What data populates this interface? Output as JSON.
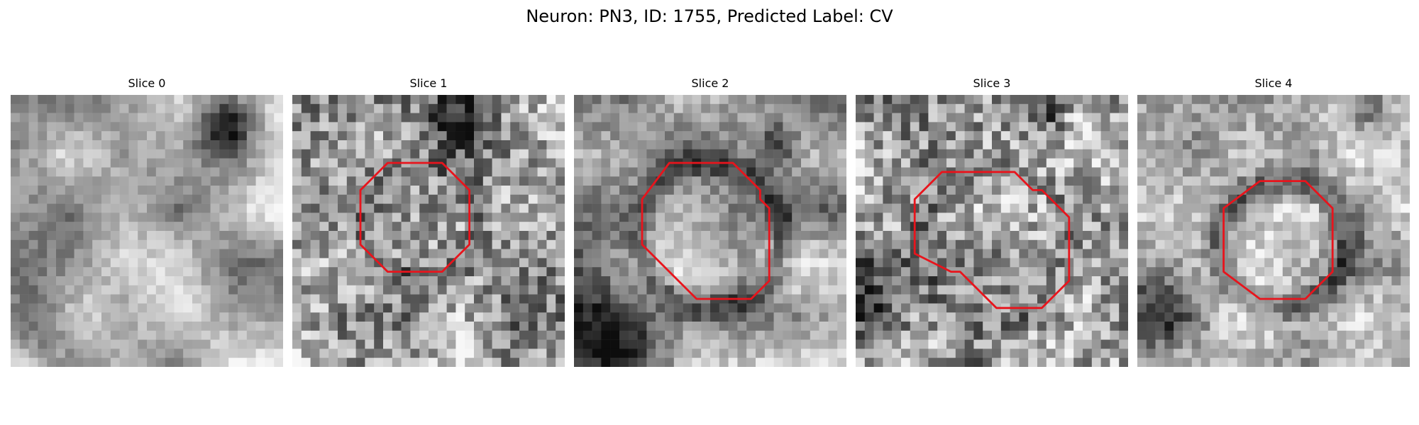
{
  "figure": {
    "title": "Neuron: PN3, ID: 1755, Predicted Label: CV"
  },
  "panels": [
    {
      "title": "Slice 0",
      "contour": []
    },
    {
      "title": "Slice 1",
      "contour": [
        [
          10.5,
          7.5
        ],
        [
          16.5,
          7.5
        ],
        [
          19.5,
          10.5
        ],
        [
          19.5,
          16.5
        ],
        [
          16.5,
          19.5
        ],
        [
          10.5,
          19.5
        ],
        [
          7.5,
          16.5
        ],
        [
          7.5,
          10.5
        ]
      ]
    },
    {
      "title": "Slice 2",
      "contour": [
        [
          10.5,
          7.5
        ],
        [
          17.5,
          7.5
        ],
        [
          20.5,
          10.5
        ],
        [
          20.5,
          11.5
        ],
        [
          21.5,
          12.5
        ],
        [
          21.5,
          20.5
        ],
        [
          19.5,
          22.5
        ],
        [
          13.5,
          22.5
        ],
        [
          7.5,
          16.5
        ],
        [
          7.5,
          11.5
        ]
      ]
    },
    {
      "title": "Slice 3",
      "contour": [
        [
          9.5,
          8.5
        ],
        [
          17.5,
          8.5
        ],
        [
          19.5,
          10.5
        ],
        [
          20.5,
          10.5
        ],
        [
          23.5,
          13.5
        ],
        [
          23.5,
          20.5
        ],
        [
          20.5,
          23.5
        ],
        [
          15.5,
          23.5
        ],
        [
          11.5,
          19.5
        ],
        [
          10.5,
          19.5
        ],
        [
          6.5,
          17.5
        ],
        [
          6.5,
          11.5
        ]
      ]
    },
    {
      "title": "Slice 4",
      "contour": [
        [
          13.5,
          9.5
        ],
        [
          18.5,
          9.5
        ],
        [
          21.5,
          12.5
        ],
        [
          21.5,
          19.5
        ],
        [
          18.5,
          22.5
        ],
        [
          13.5,
          22.5
        ],
        [
          9.5,
          19.5
        ],
        [
          9.5,
          12.5
        ]
      ]
    }
  ],
  "colors": {
    "contour": "#e8141c"
  }
}
